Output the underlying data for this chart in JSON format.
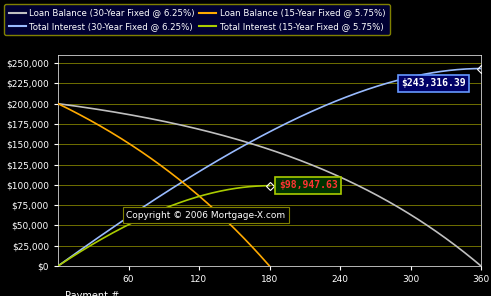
{
  "background_color": "#000000",
  "plot_bg_color": "#000000",
  "grid_color": "#808000",
  "xlim": [
    0,
    360
  ],
  "ylim": [
    0,
    260000
  ],
  "yticks": [
    0,
    25000,
    50000,
    75000,
    100000,
    125000,
    150000,
    175000,
    200000,
    225000,
    250000
  ],
  "xticks": [
    60,
    120,
    180,
    240,
    300,
    360
  ],
  "loan_amount": 200000,
  "rate_30": 0.0625,
  "rate_15": 0.0575,
  "n_30": 360,
  "n_15": 180,
  "line_colors": {
    "balance_30": "#c0c0c0",
    "interest_30": "#99bbff",
    "balance_15": "#ffaa00",
    "interest_15": "#aacc00"
  },
  "legend_bg": "#000033",
  "legend_edge": "#808000",
  "annotation_30_value": "$243,316.39",
  "annotation_15_value": "$98,947.63",
  "copyright_text": "Copyright © 2006 Mortgage-X.com",
  "legend_entries": [
    [
      "Loan Balance (30-Year Fixed @ 6.25%)",
      "#c0c0c0"
    ],
    [
      "Total Interest (30-Year Fixed @ 6.25%)",
      "#99bbff"
    ],
    [
      "Loan Balance (15-Year Fixed @ 5.75%)",
      "#ffaa00"
    ],
    [
      "Total Interest (15-Year Fixed @ 5.75%)",
      "#aacc00"
    ]
  ]
}
